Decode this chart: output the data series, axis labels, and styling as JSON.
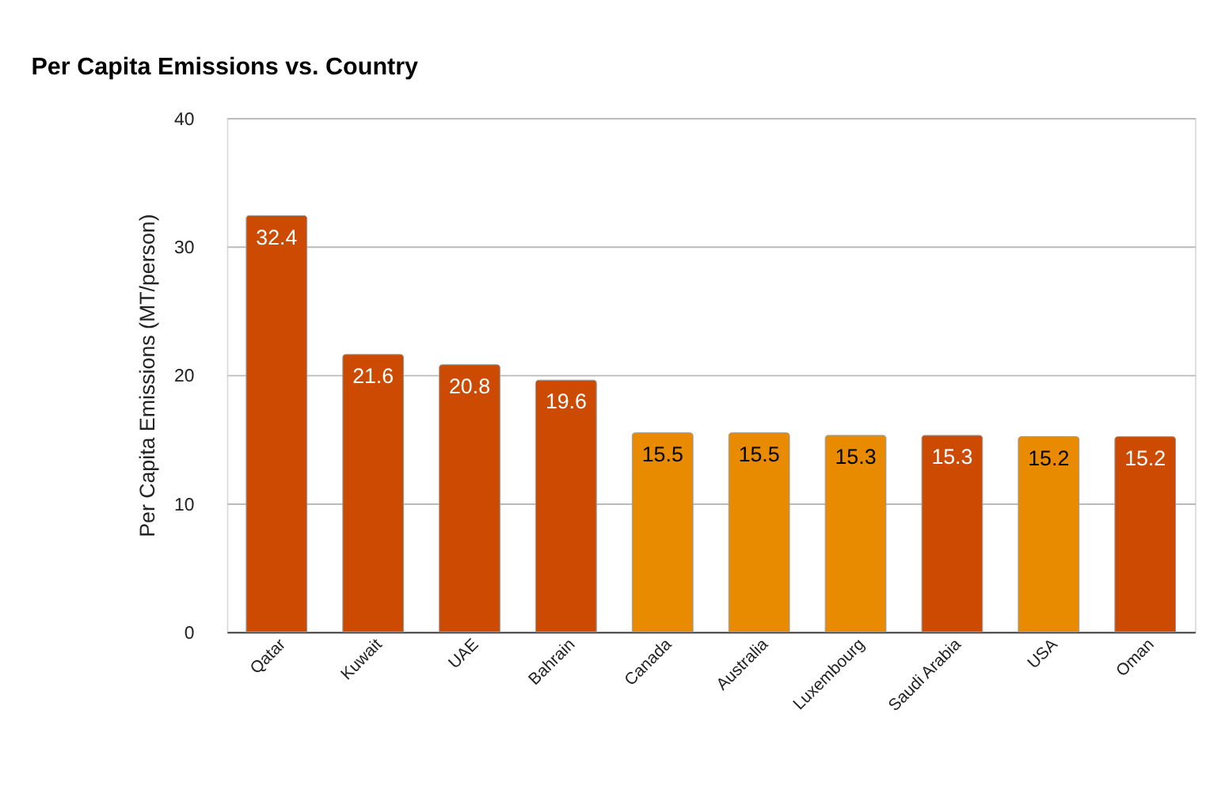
{
  "chart_data": {
    "type": "bar",
    "title": "Per Capita Emissions vs. Country",
    "ylabel": "Per Capita Emissions (MT/person)",
    "categories": [
      "Qatar",
      "Kuwait",
      "UAE",
      "Bahrain",
      "Canada",
      "Australia",
      "Luxembourg",
      "Saudi Arabia",
      "USA",
      "Oman"
    ],
    "values": [
      32.4,
      21.6,
      20.8,
      19.6,
      15.5,
      15.5,
      15.3,
      15.3,
      15.2,
      15.2
    ],
    "colors": [
      "#cc4a02",
      "#cc4a02",
      "#cc4a02",
      "#cc4a02",
      "#e98b00",
      "#e98b00",
      "#e98b00",
      "#cc4a02",
      "#e98b00",
      "#cc4a02"
    ],
    "ylim": [
      0,
      40
    ],
    "yticks": [
      0,
      10,
      20,
      30,
      40
    ],
    "grid": "y",
    "data_labels": true
  }
}
